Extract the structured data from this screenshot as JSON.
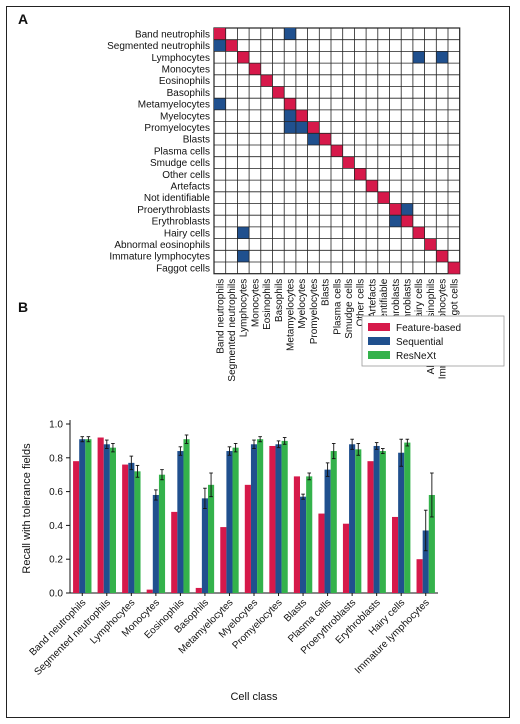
{
  "figure": {
    "panel_a_label": "A",
    "panel_b_label": "B"
  },
  "colors": {
    "red": "#d6194a",
    "blue": "#20508e",
    "green": "#34b24b",
    "grid": "#222222"
  },
  "chart_data": [
    {
      "type": "heatmap",
      "title": "",
      "rows": [
        "Band neutrophils",
        "Segmented neutrophils",
        "Lymphocytes",
        "Monocytes",
        "Eosinophils",
        "Basophils",
        "Metamyelocytes",
        "Myelocytes",
        "Promyelocytes",
        "Blasts",
        "Plasma cells",
        "Smudge cells",
        "Other cells",
        "Artefacts",
        "Not identifiable",
        "Proerythroblasts",
        "Erythroblasts",
        "Hairy cells",
        "Abnormal eosinophils",
        "Immature lymphocytes",
        "Faggot cells"
      ],
      "columns": [
        "Band neutrophils",
        "Segmented neutrophils",
        "Lymphocytes",
        "Monocytes",
        "Eosinophils",
        "Basophils",
        "Metamyelocytes",
        "Myelocytes",
        "Promyelocytes",
        "Blasts",
        "Plasma cells",
        "Smudge cells",
        "Other cells",
        "Artefacts",
        "Not identifiable",
        "Proerythroblasts",
        "Erythroblasts",
        "Hairy cells",
        "Abnormal eosinophils",
        "Immature lymphocytes",
        "Faggot cells"
      ],
      "red_cells": [
        [
          0,
          0
        ],
        [
          1,
          1
        ],
        [
          2,
          2
        ],
        [
          3,
          3
        ],
        [
          4,
          4
        ],
        [
          5,
          5
        ],
        [
          6,
          6
        ],
        [
          7,
          7
        ],
        [
          8,
          8
        ],
        [
          9,
          9
        ],
        [
          10,
          10
        ],
        [
          11,
          11
        ],
        [
          12,
          12
        ],
        [
          13,
          13
        ],
        [
          14,
          14
        ],
        [
          15,
          15
        ],
        [
          16,
          16
        ],
        [
          17,
          17
        ],
        [
          18,
          18
        ],
        [
          19,
          19
        ],
        [
          20,
          20
        ]
      ],
      "blue_cells": [
        [
          0,
          6
        ],
        [
          1,
          0
        ],
        [
          2,
          17
        ],
        [
          2,
          19
        ],
        [
          6,
          0
        ],
        [
          7,
          6
        ],
        [
          8,
          6
        ],
        [
          8,
          7
        ],
        [
          9,
          8
        ],
        [
          15,
          16
        ],
        [
          16,
          15
        ],
        [
          17,
          2
        ],
        [
          19,
          2
        ]
      ]
    },
    {
      "type": "bar",
      "xlabel": "Cell class",
      "ylabel": "Recall with tolerance fields",
      "ylim": [
        0,
        1.0
      ],
      "yticks": [
        "0.0",
        "0.2",
        "0.4",
        "0.6",
        "0.8",
        "1.0"
      ],
      "categories": [
        "Band neutrophils",
        "Segmented neutrophils",
        "Lymphocytes",
        "Monocytes",
        "Eosinophils",
        "Basophils",
        "Metamyelocytes",
        "Myelocytes",
        "Promyelocytes",
        "Blasts",
        "Plasma cells",
        "Proerythroblasts",
        "Erythroblasts",
        "Hairy cells",
        "Immature lymphocytes"
      ],
      "legend_position": "top-right",
      "series": [
        {
          "name": "Feature-based",
          "color": "#d6194a",
          "values": [
            0.78,
            0.92,
            0.76,
            0.02,
            0.48,
            0.03,
            0.39,
            0.64,
            0.87,
            0.69,
            0.47,
            0.41,
            0.78,
            0.45,
            0.2
          ],
          "errors": [
            0,
            0,
            0,
            0,
            0,
            0,
            0,
            0,
            0,
            0,
            0,
            0,
            0,
            0,
            0
          ]
        },
        {
          "name": "Sequential",
          "color": "#20508e",
          "values": [
            0.91,
            0.88,
            0.77,
            0.58,
            0.84,
            0.56,
            0.84,
            0.88,
            0.88,
            0.57,
            0.73,
            0.88,
            0.87,
            0.83,
            0.37
          ],
          "errors": [
            0.015,
            0.025,
            0.04,
            0.03,
            0.025,
            0.06,
            0.025,
            0.025,
            0.02,
            0.015,
            0.04,
            0.03,
            0.02,
            0.08,
            0.12
          ]
        },
        {
          "name": "ResNeXt",
          "color": "#34b24b",
          "values": [
            0.91,
            0.86,
            0.72,
            0.7,
            0.91,
            0.64,
            0.86,
            0.91,
            0.9,
            0.69,
            0.84,
            0.85,
            0.84,
            0.89,
            0.58
          ],
          "errors": [
            0.015,
            0.025,
            0.035,
            0.03,
            0.025,
            0.07,
            0.025,
            0.015,
            0.02,
            0.02,
            0.045,
            0.035,
            0.015,
            0.02,
            0.13
          ]
        }
      ]
    }
  ]
}
